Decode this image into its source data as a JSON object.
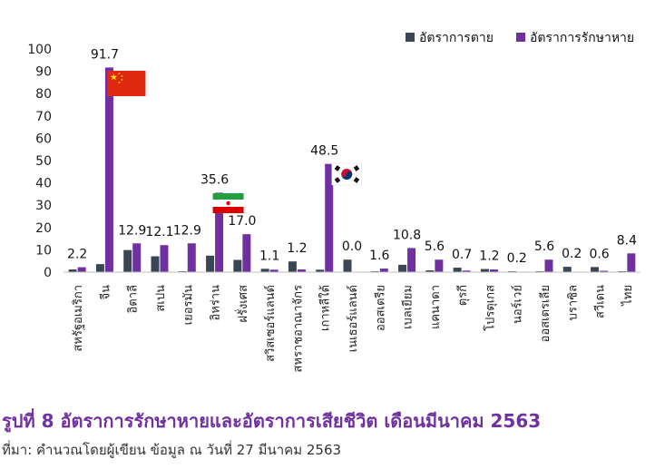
{
  "chart_data": {
    "type": "bar",
    "ylim": [
      0,
      100
    ],
    "yticks": [
      0,
      10,
      20,
      30,
      40,
      50,
      60,
      70,
      80,
      90,
      100
    ],
    "categories": [
      "สหรัฐอเมริกา",
      "จีน",
      "อิตาลี",
      "สเปน",
      "เยอรมัน",
      "อิหร่าน",
      "ฝรั่งเศส",
      "สวิสเซอร์แลนด์",
      "สหราชอาณาจักร",
      "เกาหลีใต้",
      "เนเธอร์แลนด์",
      "ออสเตรีย",
      "เบลเยียม",
      "แคนาดา",
      "ตุรกี",
      "โปรตุเกส",
      "นอร์เวย์",
      "ออสเตรเลีย",
      "บราซิล",
      "สวีเดน",
      "ไทย"
    ],
    "series": [
      {
        "name": "อัตราการตาย",
        "color": "#3a4654",
        "values": [
          1.2,
          3.6,
          9.9,
          7.1,
          0.4,
          7.4,
          5.5,
          1.5,
          4.8,
          1.1,
          5.6,
          0.4,
          3.3,
          0.8,
          2.0,
          1.4,
          0.4,
          0.4,
          2.4,
          2.3,
          0.4
        ]
      },
      {
        "name": "อัตราการรักษาหาย",
        "color": "#7030a0",
        "values": [
          2.2,
          91.7,
          12.9,
          12.1,
          12.9,
          35.6,
          17.0,
          1.1,
          1.2,
          48.5,
          0.0,
          1.6,
          10.8,
          5.6,
          0.7,
          1.2,
          0.2,
          5.6,
          0.2,
          0.6,
          8.4
        ]
      }
    ],
    "data_labels": [
      "2.2",
      "91.7",
      "12.9",
      "12.1",
      "12.9",
      "35.6",
      "17.0",
      "1.1",
      "1.2",
      "48.5",
      "0.0",
      "1.6",
      "10.8",
      "5.6",
      "0.7",
      "1.2",
      "0.2",
      "5.6",
      "0.2",
      "0.6",
      "8.4"
    ],
    "legend_position": "top-right",
    "flags": [
      {
        "category": "จีน",
        "flag": "china-flag"
      },
      {
        "category": "อิหร่าน",
        "flag": "iran-flag"
      },
      {
        "category": "เกาหลีใต้",
        "flag": "south-korea-flag"
      }
    ]
  },
  "caption": "รูปที่ 8 อัตราการรักษาหายและอัตราการเสียชีวิต เดือนมีนาคม 2563",
  "source": "ที่มา: คำนวณโดยผู้เขียน ข้อมูล ณ วันที่ 27 มีนาคม 2563"
}
